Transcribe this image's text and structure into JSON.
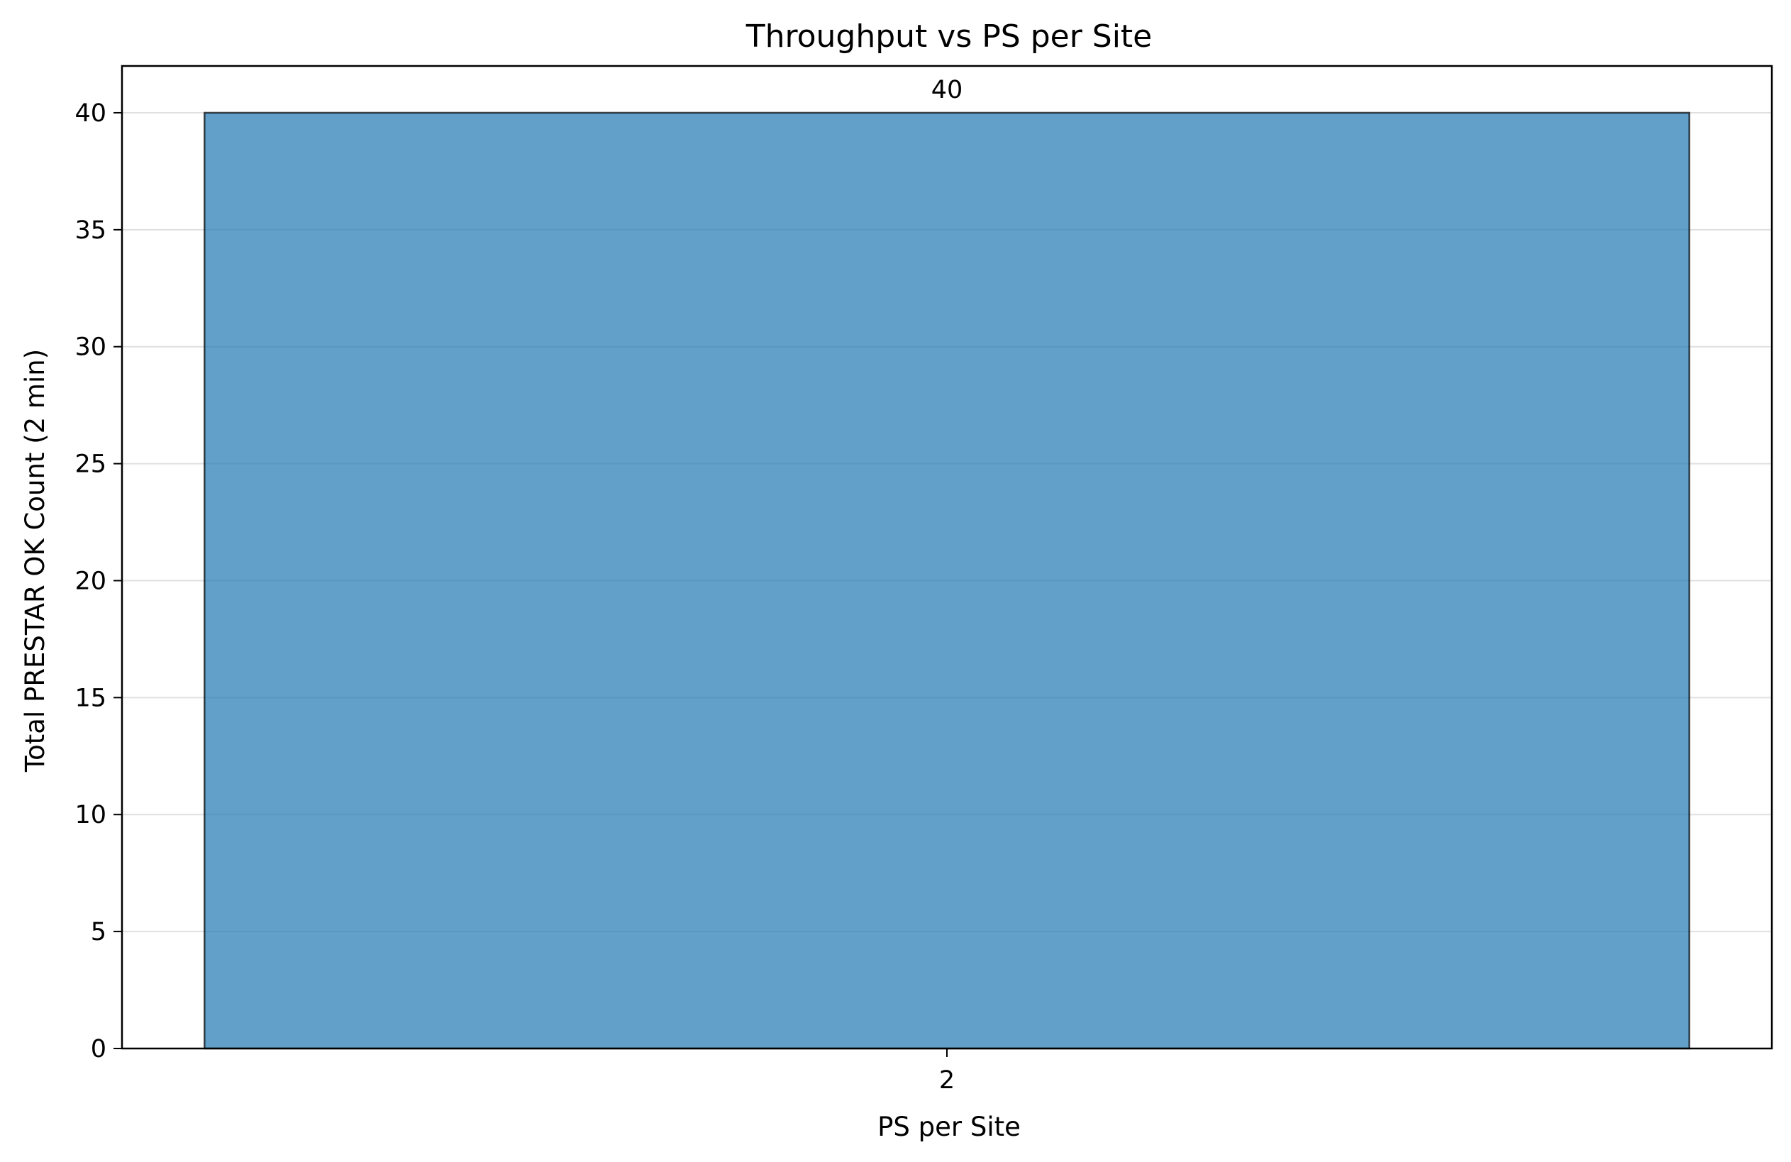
{
  "chart_data": {
    "type": "bar",
    "title": "Throughput vs PS per Site",
    "xlabel": "PS per Site",
    "ylabel": "Total PRESTAR OK Count (2 min)",
    "categories": [
      "2"
    ],
    "values": [
      40
    ],
    "data_labels": [
      "40"
    ],
    "ylim": [
      0,
      42
    ],
    "yticks": [
      0,
      5,
      10,
      15,
      20,
      25,
      30,
      35,
      40
    ],
    "grid": "horizontal",
    "bar_color": "#1f77b4",
    "bar_opacity": 0.7,
    "bar_edge_color": "#000000"
  }
}
